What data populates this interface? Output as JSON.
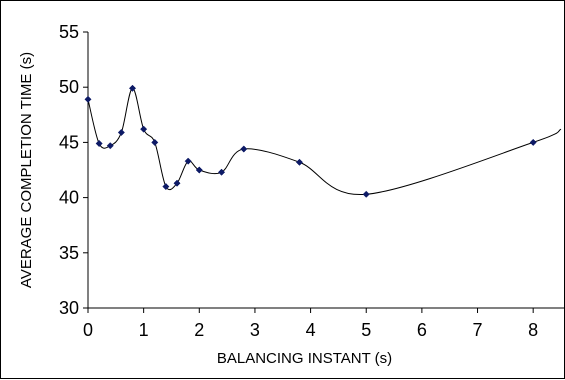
{
  "chart_data": {
    "type": "line",
    "title": "",
    "xlabel": "BALANCING INSTANT (s)",
    "ylabel": "AVERAGE COMPLETION TIME (s)",
    "xlim": [
      0,
      8.5
    ],
    "ylim": [
      30,
      55
    ],
    "x_ticks": [
      0,
      1,
      2,
      3,
      4,
      5,
      6,
      7,
      8
    ],
    "y_ticks": [
      30,
      35,
      40,
      45,
      50,
      55
    ],
    "x_tick_labels": [
      "0",
      "1",
      "2",
      "3",
      "4",
      "5",
      "6",
      "7",
      "8"
    ],
    "y_tick_labels": [
      "30",
      "35",
      "40",
      "45",
      "50",
      "55"
    ],
    "grid": false,
    "legend": "none",
    "smooth": true,
    "line_color": "#000000",
    "marker_color": "#0d1a66",
    "series": [
      {
        "x": [
          0,
          0.2,
          0.4,
          0.6,
          0.8,
          1.0,
          1.2,
          1.4,
          1.6,
          1.8,
          2.0,
          2.4,
          2.8,
          3.8,
          5.0,
          8.0
        ],
        "values": [
          48.9,
          44.9,
          44.7,
          45.9,
          49.9,
          46.2,
          45.0,
          41.0,
          41.3,
          43.3,
          42.5,
          42.3,
          44.4,
          43.2,
          40.3,
          45.0
        ]
      }
    ],
    "line_extends_to_x": 8.5,
    "line_extends_to_y": 46.2
  }
}
